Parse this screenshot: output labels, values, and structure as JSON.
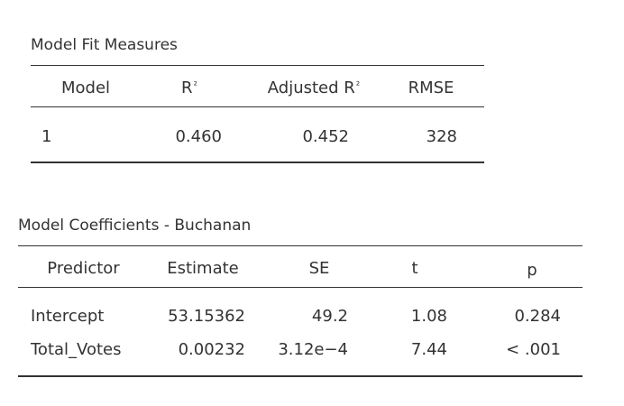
{
  "fit_table": {
    "title": "Model Fit Measures",
    "headers": {
      "model": "Model",
      "r2": "R",
      "r2_sup": "²",
      "adj_r2": "Adjusted R",
      "adj_r2_sup": "²",
      "rmse": "RMSE"
    },
    "rows": [
      {
        "model": "1",
        "r2": "0.460",
        "adj_r2": "0.452",
        "rmse": "328"
      }
    ]
  },
  "coef_table": {
    "title": "Model Coefficients - Buchanan",
    "headers": {
      "predictor": "Predictor",
      "estimate": "Estimate",
      "se": "SE",
      "t": "t",
      "p": "p"
    },
    "rows": [
      {
        "predictor": "Intercept",
        "estimate": "53.15362",
        "se": "49.2",
        "t": "1.08",
        "p": "0.284"
      },
      {
        "predictor": "Total_Votes",
        "estimate": "0.00232",
        "se": "3.12e−4",
        "t": "7.44",
        "p": "< .001"
      }
    ]
  }
}
